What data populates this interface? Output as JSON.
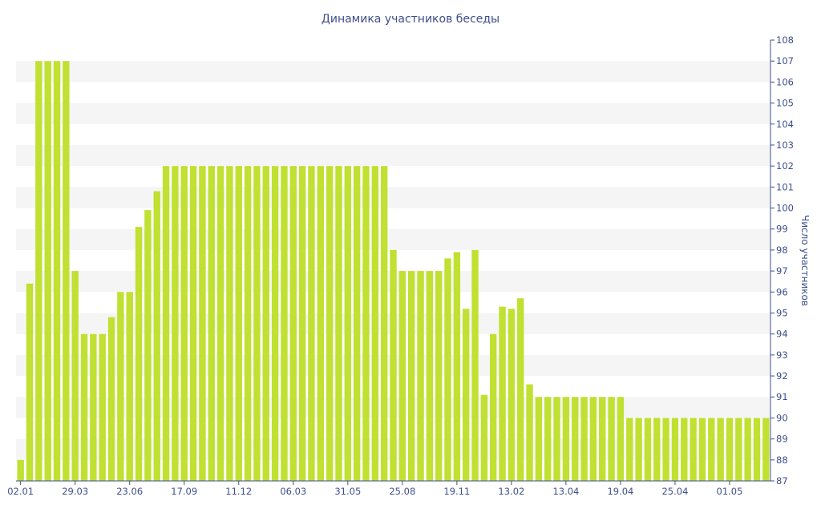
{
  "chart_data": {
    "type": "bar",
    "title": "Динамика участников беседы",
    "ylabel": "Число участников",
    "xlabel": "",
    "ylim": [
      87,
      108
    ],
    "yticks": [
      87,
      88,
      89,
      90,
      91,
      92,
      93,
      94,
      95,
      96,
      97,
      98,
      99,
      100,
      101,
      102,
      103,
      104,
      105,
      106,
      107,
      108
    ],
    "y_axis_side": "right",
    "bands": "alternating light grey",
    "xtick_labels": [
      {
        "label": "02.01",
        "index": 0
      },
      {
        "label": "29.03",
        "index": 6
      },
      {
        "label": "23.06",
        "index": 12
      },
      {
        "label": "17.09",
        "index": 18
      },
      {
        "label": "11.12",
        "index": 24
      },
      {
        "label": "06.03",
        "index": 30
      },
      {
        "label": "31.05",
        "index": 36
      },
      {
        "label": "25.08",
        "index": 42
      },
      {
        "label": "19.11",
        "index": 48
      },
      {
        "label": "13.02",
        "index": 54
      },
      {
        "label": "13.04",
        "index": 60
      },
      {
        "label": "19.04",
        "index": 66
      },
      {
        "label": "25.04",
        "index": 72
      },
      {
        "label": "01.05",
        "index": 78
      }
    ],
    "values": [
      88,
      96.4,
      107,
      107,
      107,
      107,
      97,
      94,
      94,
      94,
      94.8,
      96,
      96,
      99.1,
      99.9,
      100.8,
      102,
      102,
      102,
      102,
      102,
      102,
      102,
      102,
      102,
      102,
      102,
      102,
      102,
      102,
      102,
      102,
      102,
      102,
      102,
      102,
      102,
      102,
      102,
      102,
      102,
      98,
      97,
      97,
      97,
      97,
      97,
      97.6,
      97.9,
      95.2,
      98,
      91.1,
      94,
      95.3,
      95.2,
      95.7,
      91.6,
      91,
      91,
      91,
      91,
      91,
      91,
      91,
      91,
      91,
      91,
      90,
      90,
      90,
      90,
      90,
      90,
      90,
      90,
      90,
      90,
      90,
      90,
      90,
      90,
      90,
      90
    ],
    "bar_color": "#c0e032",
    "text_color": "#3e4f8c"
  }
}
